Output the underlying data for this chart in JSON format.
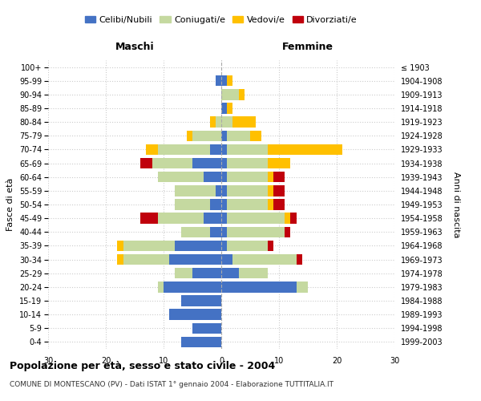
{
  "age_groups": [
    "0-4",
    "5-9",
    "10-14",
    "15-19",
    "20-24",
    "25-29",
    "30-34",
    "35-39",
    "40-44",
    "45-49",
    "50-54",
    "55-59",
    "60-64",
    "65-69",
    "70-74",
    "75-79",
    "80-84",
    "85-89",
    "90-94",
    "95-99",
    "100+"
  ],
  "birth_years": [
    "1999-2003",
    "1994-1998",
    "1989-1993",
    "1984-1988",
    "1979-1983",
    "1974-1978",
    "1969-1973",
    "1964-1968",
    "1959-1963",
    "1954-1958",
    "1949-1953",
    "1944-1948",
    "1939-1943",
    "1934-1938",
    "1929-1933",
    "1924-1928",
    "1919-1923",
    "1914-1918",
    "1909-1913",
    "1904-1908",
    "≤ 1903"
  ],
  "males": {
    "celibi": [
      7,
      5,
      9,
      7,
      10,
      5,
      9,
      8,
      2,
      3,
      2,
      1,
      3,
      5,
      2,
      0,
      0,
      0,
      0,
      1,
      0
    ],
    "coniugati": [
      0,
      0,
      0,
      0,
      1,
      3,
      8,
      9,
      5,
      8,
      6,
      7,
      8,
      7,
      9,
      5,
      1,
      0,
      0,
      0,
      0
    ],
    "vedovi": [
      0,
      0,
      0,
      0,
      0,
      0,
      1,
      1,
      0,
      0,
      0,
      0,
      0,
      0,
      2,
      1,
      1,
      0,
      0,
      0,
      0
    ],
    "divorziati": [
      0,
      0,
      0,
      0,
      0,
      0,
      0,
      0,
      0,
      3,
      0,
      0,
      0,
      2,
      0,
      0,
      0,
      0,
      0,
      0,
      0
    ]
  },
  "females": {
    "nubili": [
      0,
      0,
      0,
      0,
      13,
      3,
      2,
      1,
      1,
      1,
      1,
      1,
      1,
      1,
      1,
      1,
      0,
      1,
      0,
      1,
      0
    ],
    "coniugate": [
      0,
      0,
      0,
      0,
      2,
      5,
      11,
      7,
      10,
      10,
      7,
      7,
      7,
      7,
      7,
      4,
      2,
      0,
      3,
      0,
      0
    ],
    "vedove": [
      0,
      0,
      0,
      0,
      0,
      0,
      0,
      0,
      0,
      1,
      1,
      1,
      1,
      4,
      13,
      2,
      4,
      1,
      1,
      1,
      0
    ],
    "divorziate": [
      0,
      0,
      0,
      0,
      0,
      0,
      1,
      1,
      1,
      1,
      2,
      2,
      2,
      0,
      0,
      0,
      0,
      0,
      0,
      0,
      0
    ]
  },
  "colors": {
    "celibi": "#4472C4",
    "coniugati": "#C5D9A0",
    "vedovi": "#FFC000",
    "divorziati": "#C0000C"
  },
  "xlim": 30,
  "title": "Popolazione per età, sesso e stato civile - 2004",
  "subtitle": "COMUNE DI MONTESCANO (PV) - Dati ISTAT 1° gennaio 2004 - Elaborazione TUTTITALIA.IT",
  "ylabel_left": "Fasce di età",
  "ylabel_right": "Anni di nascita",
  "xlabel_left": "Maschi",
  "xlabel_right": "Femmine",
  "legend_labels": [
    "Celibi/Nubili",
    "Coniugati/e",
    "Vedovi/e",
    "Divorziati/e"
  ],
  "bg_color": "#FFFFFF",
  "grid_color": "#CCCCCC"
}
